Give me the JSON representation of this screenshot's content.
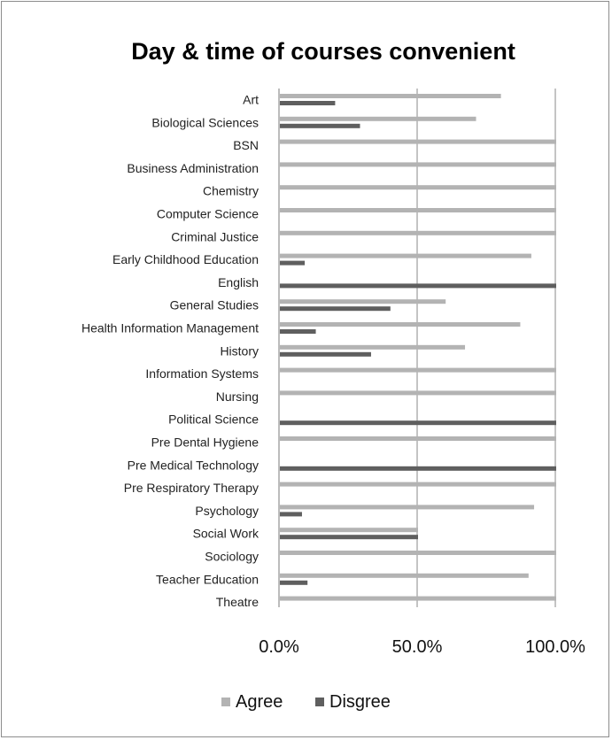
{
  "chart_data": {
    "type": "bar",
    "orientation": "horizontal",
    "title": "Day & time of courses  convenient",
    "xlabel": "",
    "ylabel": "",
    "xlim": [
      0,
      100
    ],
    "x_ticks": [
      "0.0%",
      "50.0%",
      "100.0%"
    ],
    "grid": true,
    "legend_position": "bottom",
    "categories": [
      "Art",
      "Biological Sciences",
      "BSN",
      "Business Administration",
      "Chemistry",
      "Computer Science",
      "Criminal Justice",
      "Early Childhood Education",
      "English",
      "General Studies",
      "Health Information Management",
      "History",
      "Information Systems",
      "Nursing",
      "Political Science",
      "Pre Dental Hygiene",
      "Pre Medical Technology",
      "Pre Respiratory Therapy",
      "Psychology",
      "Social Work",
      "Sociology",
      "Teacher Education",
      "Theatre"
    ],
    "series": [
      {
        "name": "Agree",
        "color": "#b3b3b3",
        "values": [
          80,
          71,
          100,
          100,
          100,
          100,
          100,
          91,
          0,
          60,
          87,
          67,
          100,
          100,
          0,
          100,
          0,
          100,
          92,
          50,
          100,
          90,
          100
        ]
      },
      {
        "name": "Disgree",
        "color": "#5f5f5f",
        "values": [
          20,
          29,
          0,
          0,
          0,
          0,
          0,
          9,
          100,
          40,
          13,
          33,
          0,
          0,
          100,
          0,
          100,
          0,
          8,
          50,
          0,
          10,
          0
        ]
      }
    ]
  }
}
